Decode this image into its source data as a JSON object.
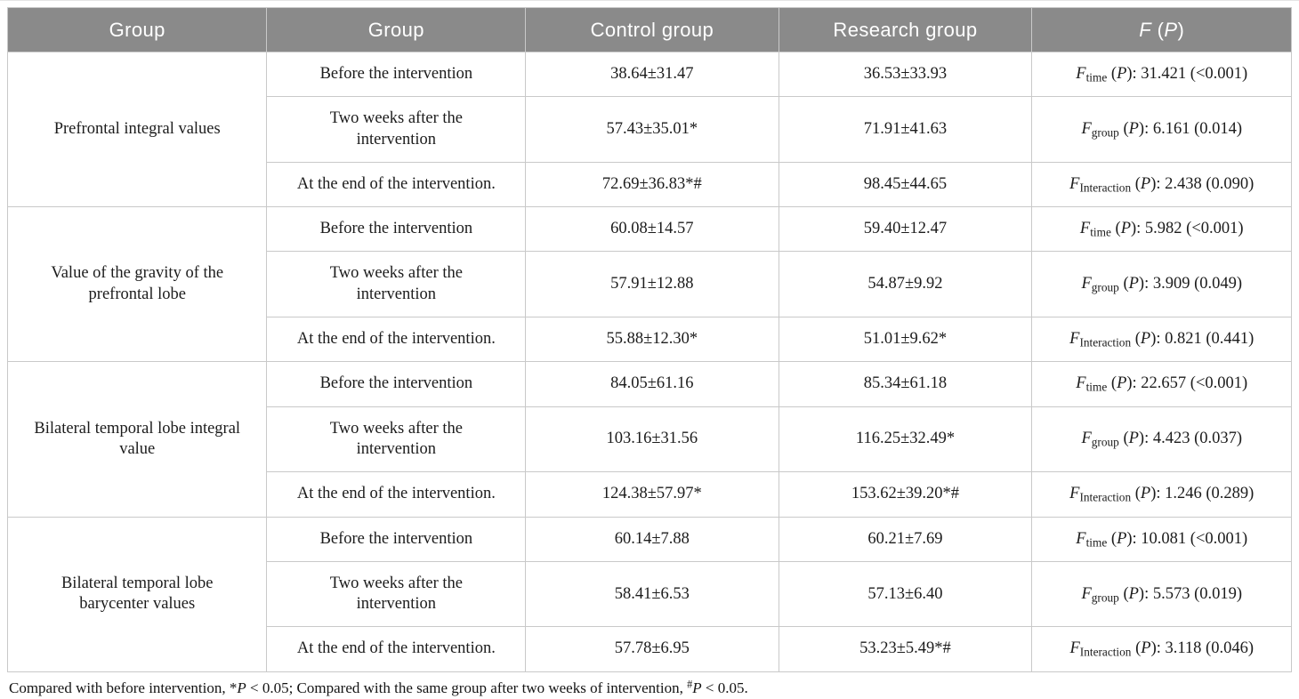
{
  "colors": {
    "header_bg": "#8a8a8a",
    "header_fg": "#ffffff",
    "border": "#c9c9c9"
  },
  "table": {
    "columns": [
      "Group",
      "Group",
      "Control group",
      "Research group"
    ],
    "header_f": [
      {
        "t": "F",
        "s": "i"
      },
      {
        "t": " (",
        "s": "n"
      },
      {
        "t": "P",
        "s": "i"
      },
      {
        "t": ")",
        "s": "n"
      }
    ],
    "groups": [
      {
        "label": "Prefrontal integral values",
        "rows": [
          {
            "time": "Before the intervention",
            "control": "38.64±31.47",
            "research": "36.53±33.93",
            "f": [
              {
                "t": "F",
                "s": "i"
              },
              {
                "t": "time",
                "s": "sub"
              },
              {
                "t": " (",
                "s": "n"
              },
              {
                "t": "P",
                "s": "i"
              },
              {
                "t": "): 31.421 (<0.001)",
                "s": "n"
              }
            ]
          },
          {
            "time": "Two weeks after the\nintervention",
            "control": "57.43±35.01*",
            "research": "71.91±41.63",
            "f": [
              {
                "t": "F",
                "s": "i"
              },
              {
                "t": "group",
                "s": "sub"
              },
              {
                "t": " (",
                "s": "n"
              },
              {
                "t": "P",
                "s": "i"
              },
              {
                "t": "): 6.161 (0.014)",
                "s": "n"
              }
            ]
          },
          {
            "time": "At the end of the intervention.",
            "control": "72.69±36.83*#",
            "research": "98.45±44.65",
            "f": [
              {
                "t": "F",
                "s": "i"
              },
              {
                "t": "Interaction",
                "s": "sub"
              },
              {
                "t": " (",
                "s": "n"
              },
              {
                "t": "P",
                "s": "i"
              },
              {
                "t": "): 2.438 (0.090)",
                "s": "n"
              }
            ]
          }
        ]
      },
      {
        "label": "Value of the gravity of the\nprefrontal lobe",
        "rows": [
          {
            "time": "Before the intervention",
            "control": "60.08±14.57",
            "research": "59.40±12.47",
            "f": [
              {
                "t": "F",
                "s": "i"
              },
              {
                "t": "time",
                "s": "sub"
              },
              {
                "t": " (",
                "s": "n"
              },
              {
                "t": "P",
                "s": "i"
              },
              {
                "t": "): 5.982 (<0.001)",
                "s": "n"
              }
            ]
          },
          {
            "time": "Two weeks after the\nintervention",
            "control": "57.91±12.88",
            "research": "54.87±9.92",
            "f": [
              {
                "t": "F",
                "s": "i"
              },
              {
                "t": "group",
                "s": "sub"
              },
              {
                "t": " (",
                "s": "n"
              },
              {
                "t": "P",
                "s": "i"
              },
              {
                "t": "): 3.909 (0.049)",
                "s": "n"
              }
            ]
          },
          {
            "time": "At the end of the intervention.",
            "control": "55.88±12.30*",
            "research": "51.01±9.62*",
            "f": [
              {
                "t": "F",
                "s": "i"
              },
              {
                "t": "Interaction",
                "s": "sub"
              },
              {
                "t": " (",
                "s": "n"
              },
              {
                "t": "P",
                "s": "i"
              },
              {
                "t": "): 0.821 (0.441)",
                "s": "n"
              }
            ]
          }
        ]
      },
      {
        "label": "Bilateral temporal lobe integral\nvalue",
        "rows": [
          {
            "time": "Before the intervention",
            "control": "84.05±61.16",
            "research": "85.34±61.18",
            "f": [
              {
                "t": "F",
                "s": "i"
              },
              {
                "t": "time",
                "s": "sub"
              },
              {
                "t": " (",
                "s": "n"
              },
              {
                "t": "P",
                "s": "i"
              },
              {
                "t": "): 22.657 (<0.001)",
                "s": "n"
              }
            ]
          },
          {
            "time": "Two weeks after the\nintervention",
            "control": "103.16±31.56",
            "research": "116.25±32.49*",
            "f": [
              {
                "t": "F",
                "s": "i"
              },
              {
                "t": "group",
                "s": "sub"
              },
              {
                "t": " (",
                "s": "n"
              },
              {
                "t": "P",
                "s": "i"
              },
              {
                "t": "): 4.423 (0.037)",
                "s": "n"
              }
            ]
          },
          {
            "time": "At the end of the intervention.",
            "control": "124.38±57.97*",
            "research": "153.62±39.20*#",
            "f": [
              {
                "t": "F",
                "s": "i"
              },
              {
                "t": "Interaction",
                "s": "sub"
              },
              {
                "t": " (",
                "s": "n"
              },
              {
                "t": "P",
                "s": "i"
              },
              {
                "t": "): 1.246 (0.289)",
                "s": "n"
              }
            ]
          }
        ]
      },
      {
        "label": "Bilateral temporal lobe\nbarycenter values",
        "rows": [
          {
            "time": "Before the intervention",
            "control": "60.14±7.88",
            "research": "60.21±7.69",
            "f": [
              {
                "t": "F",
                "s": "i"
              },
              {
                "t": "time",
                "s": "sub"
              },
              {
                "t": " (",
                "s": "n"
              },
              {
                "t": "P",
                "s": "i"
              },
              {
                "t": "): 10.081 (<0.001)",
                "s": "n"
              }
            ]
          },
          {
            "time": "Two weeks after the\nintervention",
            "control": "58.41±6.53",
            "research": "57.13±6.40",
            "f": [
              {
                "t": "F",
                "s": "i"
              },
              {
                "t": "group",
                "s": "sub"
              },
              {
                "t": " (",
                "s": "n"
              },
              {
                "t": "P",
                "s": "i"
              },
              {
                "t": "): 5.573 (0.019)",
                "s": "n"
              }
            ]
          },
          {
            "time": "At the end of the intervention.",
            "control": "57.78±6.95",
            "research": "53.23±5.49*#",
            "f": [
              {
                "t": "F",
                "s": "i"
              },
              {
                "t": "Interaction",
                "s": "sub"
              },
              {
                "t": " (",
                "s": "n"
              },
              {
                "t": "P",
                "s": "i"
              },
              {
                "t": "): 3.118 (0.046)",
                "s": "n"
              }
            ]
          }
        ]
      }
    ],
    "footnote": [
      {
        "t": "Compared with before intervention, ",
        "s": "n"
      },
      {
        "t": "*",
        "s": "n"
      },
      {
        "t": "P",
        "s": "i"
      },
      {
        "t": " < 0.05; Compared with the same group after two weeks of intervention, ",
        "s": "n"
      },
      {
        "t": "#",
        "s": "sup"
      },
      {
        "t": "P",
        "s": "i"
      },
      {
        "t": " < 0.05.",
        "s": "n"
      }
    ]
  }
}
